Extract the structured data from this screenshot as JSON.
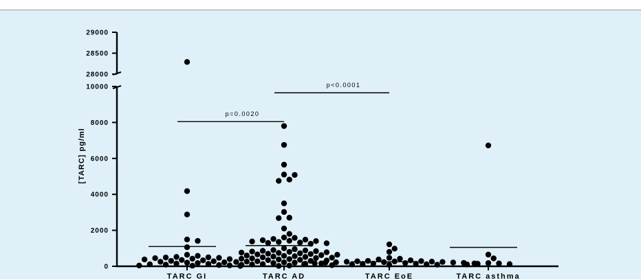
{
  "chart_data": {
    "type": "scatter",
    "ylabel": "[TARC] pg/ml",
    "categories": [
      "TARC GI",
      "TARC AD",
      "TARC EoE",
      "TARC asthma"
    ],
    "y_axis": {
      "broken": true,
      "lower_range": [
        0,
        10000
      ],
      "upper_range": [
        28000,
        29000
      ],
      "lower_ticks": [
        "0",
        "2000",
        "4000",
        "6000",
        "8000",
        "10000"
      ],
      "upper_ticks": [
        "28000",
        "28500",
        "29000"
      ]
    },
    "series": [
      {
        "category": "TARC GI",
        "median_line": 1100,
        "values": [
          28290,
          4180,
          2880,
          1490,
          1410,
          1060,
          640,
          580,
          520,
          500,
          490,
          470,
          450,
          420,
          400,
          380,
          350,
          330,
          300,
          280,
          250,
          220,
          200,
          180,
          150,
          130,
          110,
          90,
          70,
          50,
          40,
          30,
          20
        ]
      },
      {
        "category": "TARC AD",
        "median_line": 1150,
        "values": [
          7800,
          6750,
          5650,
          5100,
          5080,
          4820,
          4750,
          3500,
          3020,
          2700,
          2680,
          2100,
          1800,
          1600,
          1580,
          1520,
          1480,
          1450,
          1420,
          1400,
          1380,
          1350,
          1320,
          1300,
          1280,
          1250,
          1000,
          950,
          900,
          880,
          860,
          840,
          820,
          800,
          780,
          760,
          740,
          720,
          700,
          680,
          660,
          640,
          620,
          600,
          580,
          560,
          540,
          520,
          500,
          480,
          460,
          440,
          420,
          400,
          380,
          360,
          340,
          320,
          300,
          280,
          260,
          240,
          220,
          200,
          180,
          160,
          140,
          120,
          100,
          80,
          60,
          40,
          20
        ]
      },
      {
        "category": "TARC EoE",
        "median_line": 250,
        "values": [
          1220,
          980,
          800,
          470,
          420,
          380,
          330,
          300,
          290,
          280,
          270,
          260,
          250,
          240,
          230,
          220,
          210,
          200,
          190,
          180,
          170,
          160,
          150,
          140,
          130,
          120,
          110,
          100,
          90,
          80
        ]
      },
      {
        "category": "TARC asthma",
        "median_line": 1050,
        "values": [
          6720,
          650,
          440,
          180,
          160,
          140,
          120,
          100
        ]
      }
    ],
    "annotations": [
      {
        "text": "p=0.0020",
        "from": "TARC GI",
        "to": "TARC AD",
        "y": 8200
      },
      {
        "text": "p<0.0001",
        "from": "TARC AD",
        "to": "TARC EoE",
        "y": 9800
      }
    ]
  }
}
